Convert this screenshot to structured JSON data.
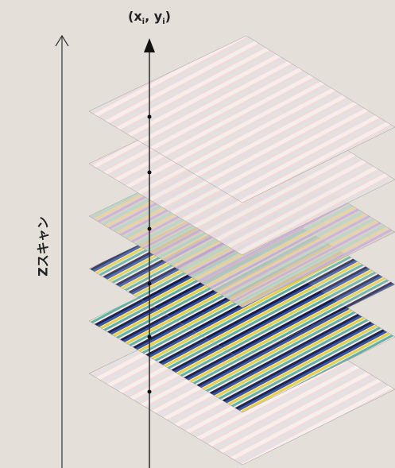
{
  "point_label": {
    "open": "(",
    "x": "x",
    "x_sub": "i",
    "sep": ", ",
    "y": "y",
    "y_sub": "i",
    "close": ")"
  },
  "axis_label": "Zスキャン"
}
